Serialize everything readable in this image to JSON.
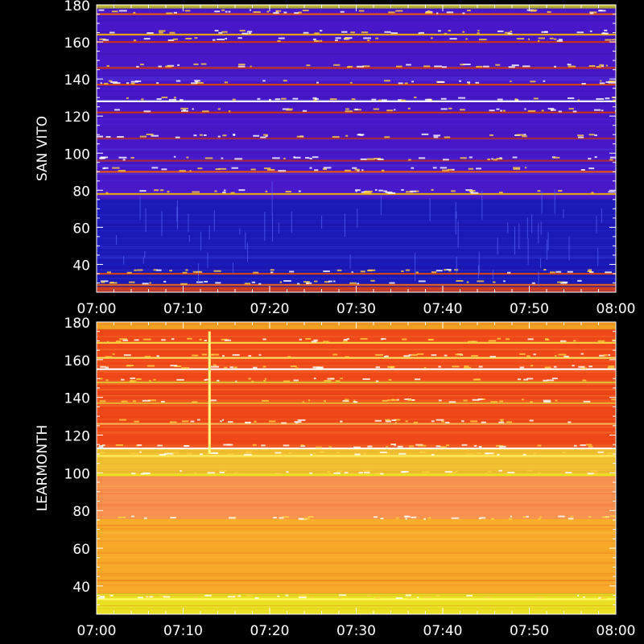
{
  "chart_data": [
    {
      "type": "heatmap",
      "ylabel": "SAN VITO",
      "xlim": [
        "07:00",
        "08:00"
      ],
      "ylim": [
        25,
        180
      ],
      "xticks": [
        "07:00",
        "07:10",
        "07:20",
        "07:30",
        "07:40",
        "07:50",
        "08:00"
      ],
      "yticks": [
        40,
        60,
        80,
        100,
        120,
        140,
        160,
        180
      ],
      "background_bands": [
        {
          "from": 25,
          "to": 28,
          "color": "#d84018"
        },
        {
          "from": 28,
          "to": 75,
          "color": "#1a1ab8"
        },
        {
          "from": 75,
          "to": 178,
          "color": "#4818c8"
        },
        {
          "from": 178,
          "to": 180,
          "color": "#c8c020"
        }
      ],
      "emission_lines": [
        {
          "freq": 175,
          "color": "#e85010"
        },
        {
          "freq": 164,
          "color": "#e8a010"
        },
        {
          "freq": 160,
          "color": "#c83018"
        },
        {
          "freq": 146,
          "color": "#c83018"
        },
        {
          "freq": 137,
          "color": "#d04010"
        },
        {
          "freq": 128,
          "color": "#ffffff"
        },
        {
          "freq": 122,
          "color": "#c83018"
        },
        {
          "freq": 108,
          "color": "#a02840"
        },
        {
          "freq": 96,
          "color": "#a02840"
        },
        {
          "freq": 90,
          "color": "#e85010"
        },
        {
          "freq": 78,
          "color": "#e0a010"
        },
        {
          "freq": 35,
          "color": "#d04018"
        },
        {
          "freq": 29,
          "color": "#e86010"
        }
      ]
    },
    {
      "type": "heatmap",
      "ylabel": "LEARMONTH",
      "xlim": [
        "07:00",
        "08:00"
      ],
      "ylim": [
        25,
        180
      ],
      "xticks": [
        "07:00",
        "07:10",
        "07:20",
        "07:30",
        "07:40",
        "07:50",
        "08:00"
      ],
      "yticks": [
        40,
        60,
        80,
        100,
        120,
        140,
        160,
        180
      ],
      "background_bands": [
        {
          "from": 25,
          "to": 36,
          "color": "#e8e020"
        },
        {
          "from": 36,
          "to": 75,
          "color": "#f8a828"
        },
        {
          "from": 75,
          "to": 98,
          "color": "#f89050"
        },
        {
          "from": 98,
          "to": 113,
          "color": "#f0c030"
        },
        {
          "from": 113,
          "to": 176,
          "color": "#f04818"
        },
        {
          "from": 176,
          "to": 180,
          "color": "#f0a020"
        }
      ],
      "emission_lines": [
        {
          "freq": 169,
          "color": "#f8d040"
        },
        {
          "freq": 161,
          "color": "#f8e060"
        },
        {
          "freq": 155,
          "color": "#ffffff"
        },
        {
          "freq": 148,
          "color": "#e0c030"
        },
        {
          "freq": 137,
          "color": "#e8b030"
        },
        {
          "freq": 126,
          "color": "#f8b050"
        },
        {
          "freq": 113,
          "color": "#ffffff"
        },
        {
          "freq": 109,
          "color": "#fff060"
        },
        {
          "freq": 99,
          "color": "#e8e820"
        },
        {
          "freq": 75,
          "color": "#f8b028"
        },
        {
          "freq": 33,
          "color": "#ffff60"
        }
      ],
      "burst": {
        "time": "07:13",
        "from": 110,
        "to": 175,
        "color": "#ffff80"
      }
    }
  ]
}
